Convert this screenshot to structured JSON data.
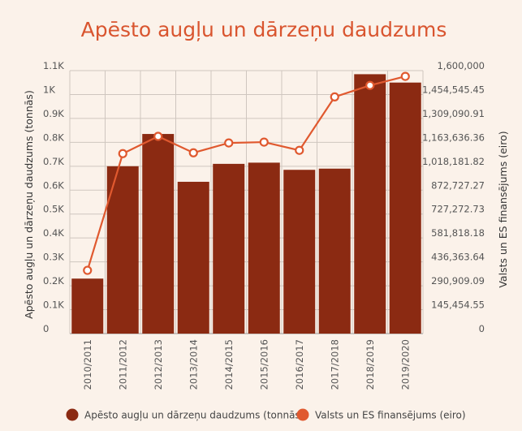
{
  "chart_data": {
    "type": "bar",
    "title": "Apēsto augļu un dārzeņu daudzums",
    "categories": [
      "2010/2011",
      "2011/2012",
      "2012/2013",
      "2013/2014",
      "2014/2015",
      "2015/2016",
      "2016/2017",
      "2017/2018",
      "2018/2019",
      "2019/2020"
    ],
    "series": [
      {
        "name": "Apēsto augļu un dārzeņu daudzums (tonnās)",
        "kind": "bar",
        "axis": "left",
        "color": "#8b2a12",
        "values": [
          230,
          700,
          835,
          635,
          710,
          715,
          685,
          690,
          1085,
          1050
        ]
      },
      {
        "name": "Valsts un ES finansējums (eiro)",
        "kind": "line",
        "axis": "right",
        "color": "#e0592f",
        "values": [
          385000,
          1095000,
          1200000,
          1100000,
          1160000,
          1165000,
          1115000,
          1440000,
          1510000,
          1565000
        ]
      }
    ],
    "ylabel": "Apēsto augļu un dārzeņu daudzums (tonnās)",
    "ylabel_right": "Valsts un ES finansējums (eiro)",
    "ylim": [
      0,
      1100
    ],
    "ylim_right": [
      0,
      1600000
    ],
    "yticks_left": [
      "0",
      "0.1K",
      "0.2K",
      "0.3K",
      "0.4K",
      "0.5K",
      "0.6K",
      "0.7K",
      "0.8K",
      "0.9K",
      "1K",
      "1.1K"
    ],
    "yticks_right": [
      "0",
      "145,454.55",
      "290,909.09",
      "436,363.64",
      "581,818.18",
      "727,272.73",
      "872,727.27",
      "1,018,181.82",
      "1,163,636.36",
      "1,309,090.91",
      "1,454,545.45",
      "1,600,000"
    ],
    "grid": true,
    "legend": "bottom"
  }
}
